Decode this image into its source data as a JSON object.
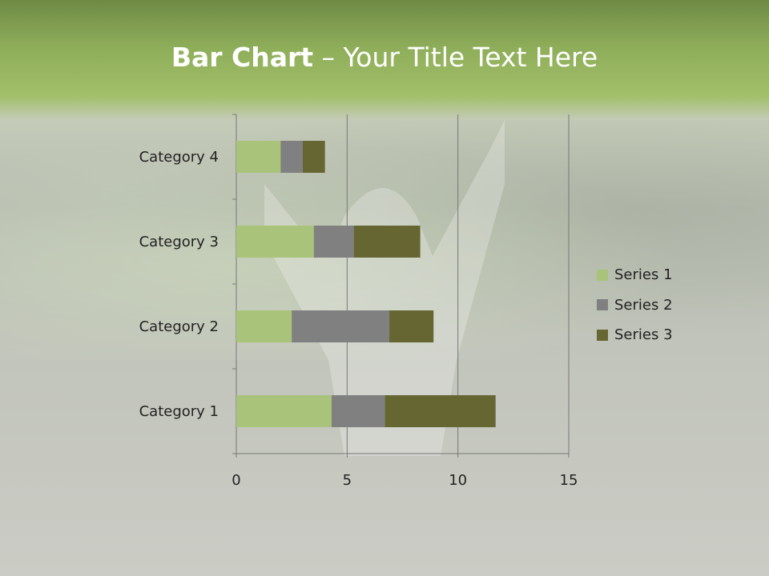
{
  "title": {
    "bold": "Bar Chart",
    "rest": " – Your Title Text Here"
  },
  "chart_data": {
    "type": "bar",
    "orientation": "horizontal",
    "stacked": true,
    "categories": [
      "Category 1",
      "Category 2",
      "Category 3",
      "Category 4"
    ],
    "series": [
      {
        "name": "Series 1",
        "values": [
          4.3,
          2.5,
          3.5,
          2
        ],
        "color": "#a9c47a"
      },
      {
        "name": "Series 2",
        "values": [
          2.4,
          4.4,
          1.8,
          1
        ],
        "color": "#808080"
      },
      {
        "name": "Series 3",
        "values": [
          5,
          2,
          3,
          1
        ],
        "color": "#666633"
      }
    ],
    "xlim": [
      0,
      15
    ],
    "xticks": [
      "0",
      "5",
      "10",
      "15"
    ],
    "grid": "vertical",
    "legend": "right"
  }
}
